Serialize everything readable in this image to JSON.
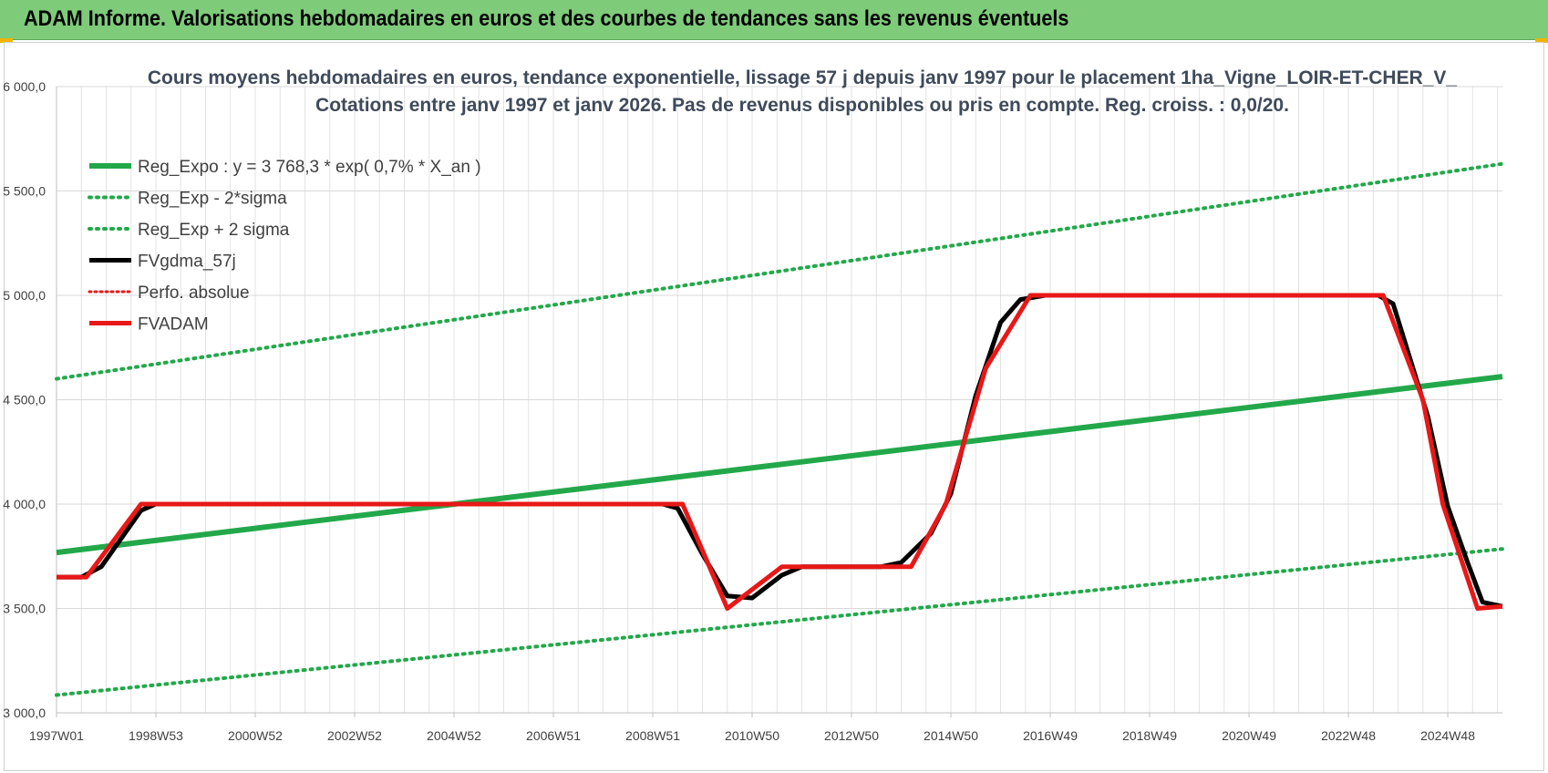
{
  "banner": {
    "title": "ADAM Informe. Valorisations hebdomadaires en euros et des courbes de tendances sans les revenus éventuels",
    "background": "#7ecb7a"
  },
  "chart_data": {
    "type": "line",
    "title": "Cours moyens hebdomadaires en euros, tendance exponentielle, lissage 57 j depuis janv 1997 pour le placement 1ha_Vigne_LOIR-ET-CHER_V_",
    "subtitle": "Cotations entre janv 1997 et janv 2026. Pas de revenus disponibles ou pris en compte. Reg. croiss. : 0,0/20.",
    "xlabel": "",
    "ylabel": "",
    "x_range": [
      1997.0,
      2026.1
    ],
    "ylim": [
      3000,
      6000
    ],
    "y_ticks": [
      "3 000,0",
      "3 500,0",
      "4 000,0",
      "4 500,0",
      "5 000,0",
      "5 500,0",
      "6 000,0"
    ],
    "y_tick_values": [
      3000,
      3500,
      4000,
      4500,
      5000,
      5500,
      6000
    ],
    "x_ticks": [
      {
        "label": "1997W01",
        "x": 1997.0
      },
      {
        "label": "1998W53",
        "x": 1999.0
      },
      {
        "label": "2000W52",
        "x": 2001.0
      },
      {
        "label": "2002W52",
        "x": 2003.0
      },
      {
        "label": "2004W52",
        "x": 2005.0
      },
      {
        "label": "2006W51",
        "x": 2007.0
      },
      {
        "label": "2008W51",
        "x": 2009.0
      },
      {
        "label": "2010W50",
        "x": 2011.0
      },
      {
        "label": "2012W50",
        "x": 2013.0
      },
      {
        "label": "2014W50",
        "x": 2015.0
      },
      {
        "label": "2016W49",
        "x": 2017.0
      },
      {
        "label": "2018W49",
        "x": 2019.0
      },
      {
        "label": "2020W49",
        "x": 2021.0
      },
      {
        "label": "2022W48",
        "x": 2023.0
      },
      {
        "label": "2024W48",
        "x": 2025.0
      }
    ],
    "grid": true,
    "legend_position": "top-left",
    "series": [
      {
        "name": "Reg_Expo : y = 3 768,3 * exp( 0,7% *  X_an )",
        "color": "#22a84a",
        "style": "solid",
        "width": 6,
        "x": [
          1997.0,
          2026.1
        ],
        "y": [
          3768.3,
          4611.0
        ]
      },
      {
        "name": "Reg_Exp - 2*sigma",
        "color": "#22a84a",
        "style": "dotted",
        "width": 4,
        "x": [
          1997.0,
          2026.1
        ],
        "y": [
          3085,
          3785
        ]
      },
      {
        "name": "Reg_Exp + 2 sigma",
        "color": "#22a84a",
        "style": "dotted",
        "width": 4,
        "x": [
          1997.0,
          2026.1
        ],
        "y": [
          4600,
          5630
        ]
      },
      {
        "name": "FVgdma_57j",
        "color": "#000000",
        "style": "solid",
        "width": 5,
        "x": [
          1997.0,
          1997.5,
          1997.9,
          1998.7,
          1999.0,
          2009.2,
          2009.5,
          2010.0,
          2010.5,
          2011.0,
          2011.6,
          2012.0,
          2013.6,
          2014.0,
          2014.6,
          2015.0,
          2015.5,
          2016.0,
          2016.4,
          2016.9,
          2017.0,
          2023.6,
          2023.9,
          2024.6,
          2025.0,
          2025.4,
          2025.7,
          2026.1
        ],
        "y": [
          3650,
          3650,
          3700,
          3970,
          4000,
          4000,
          3980,
          3760,
          3560,
          3550,
          3660,
          3700,
          3700,
          3720,
          3860,
          4050,
          4520,
          4870,
          4980,
          5000,
          5000,
          5000,
          4960,
          4420,
          3990,
          3720,
          3530,
          3510
        ]
      },
      {
        "name": "Perfo. absolue",
        "color": "#e81818",
        "style": "dotted",
        "width": 3,
        "x": [],
        "y": []
      },
      {
        "name": "FVADAM",
        "color": "#e81818",
        "style": "solid",
        "width": 5,
        "x": [
          1997.0,
          1997.6,
          1998.7,
          2009.6,
          2010.5,
          2011.6,
          2014.2,
          2014.9,
          2015.7,
          2016.6,
          2023.7,
          2024.5,
          2024.9,
          2025.6,
          2026.1
        ],
        "y": [
          3650,
          3650,
          4000,
          4000,
          3500,
          3700,
          3700,
          4000,
          4650,
          5000,
          5000,
          4500,
          4000,
          3500,
          3510
        ]
      }
    ]
  }
}
